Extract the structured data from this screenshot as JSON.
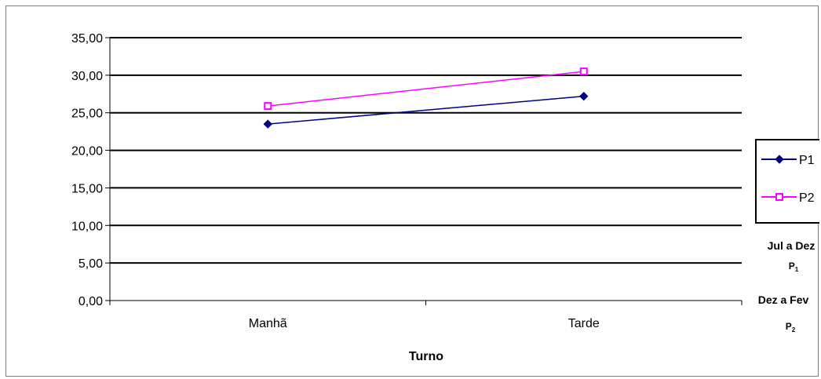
{
  "chart_data": {
    "type": "line",
    "title": "",
    "xlabel": "Turno",
    "ylabel": "",
    "categories": [
      "Manhã",
      "Tarde"
    ],
    "series": [
      {
        "name": "P1",
        "values": [
          23.5,
          27.2
        ],
        "color": "#000080",
        "marker": "diamond"
      },
      {
        "name": "P2",
        "values": [
          25.9,
          30.5
        ],
        "color": "#ff00ff",
        "marker": "square-open"
      }
    ],
    "ylim": [
      0,
      35
    ],
    "yticks": [
      "0,00",
      "5,00",
      "10,00",
      "15,00",
      "20,00",
      "25,00",
      "30,00",
      "35,00"
    ],
    "grid": true,
    "legend": "right"
  },
  "notes": {
    "p1_period": "Jul a Dez",
    "p1_label": "P1",
    "p2_period": "Dez a Fev",
    "p2_label": "P2"
  }
}
